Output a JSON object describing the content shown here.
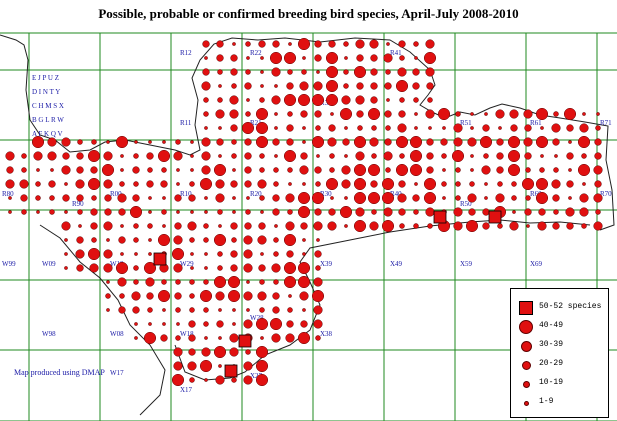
{
  "title": "Possible, probable or confirmed breeding bird species, April-July 2008-2010",
  "credit": "Map produced using DMAP",
  "colors": {
    "grid": "#1f8a1f",
    "coast": "#222222",
    "dot": "#e01010",
    "dot_stroke": "#600000",
    "label": "#1a1aa6"
  },
  "tetrad_key": [
    "E J P U Z",
    "D I N T Y",
    "C H M S X",
    "B G L R W",
    "A F K Q V"
  ],
  "square_labels": [
    "R12",
    "R22",
    "R11",
    "R21",
    "R31",
    "R41",
    "R51",
    "R61",
    "R71",
    "R80",
    "R90",
    "R00",
    "R10",
    "R20",
    "R30",
    "R40",
    "R50",
    "R60",
    "R70",
    "W99",
    "W09",
    "W19",
    "W29",
    "X39",
    "X49",
    "X59",
    "X69",
    "W98",
    "W08",
    "W18",
    "W28",
    "X38",
    "W17",
    "X17",
    "X27"
  ],
  "legend": [
    {
      "label": "50-52 species",
      "class": "50-52",
      "shape": "square"
    },
    {
      "label": "40-49",
      "class": "40-49",
      "shape": "circle"
    },
    {
      "label": "30-39",
      "class": "30-39",
      "shape": "circle"
    },
    {
      "label": "20-29",
      "class": "20-29",
      "shape": "circle"
    },
    {
      "label": "10-19",
      "class": "10-19",
      "shape": "circle"
    },
    {
      "label": "1-9",
      "class": "1-9",
      "shape": "circle"
    }
  ]
}
